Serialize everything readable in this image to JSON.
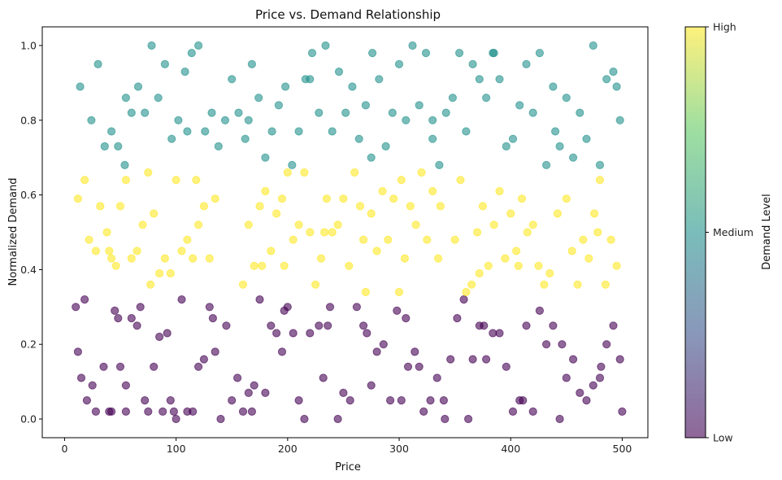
{
  "chart_data": {
    "type": "scatter",
    "title": "Price vs. Demand Relationship",
    "xlabel": "Price",
    "ylabel": "Normalized Demand",
    "xlim": [
      -20,
      523
    ],
    "ylim": [
      -0.05,
      1.05
    ],
    "xticks": [
      0,
      100,
      200,
      300,
      400,
      500
    ],
    "yticks": [
      0.0,
      0.2,
      0.4,
      0.6,
      0.8,
      1.0
    ],
    "xtick_labels": [
      "0",
      "100",
      "200",
      "300",
      "400",
      "500"
    ],
    "ytick_labels": [
      "0.0",
      "0.2",
      "0.4",
      "0.6",
      "0.8",
      "1.0"
    ],
    "grid": false,
    "marker_alpha": 0.6,
    "colorbar": {
      "label": "Demand Level",
      "ticks": [
        "Low",
        "Medium",
        "High"
      ],
      "colors": [
        "#440154",
        "#3b528b",
        "#21918c",
        "#5ec962",
        "#fde725"
      ]
    },
    "series": [
      {
        "level": "Low",
        "color": "#440154",
        "x": [
          10,
          12,
          18,
          20,
          25,
          28,
          35,
          40,
          42,
          45,
          48,
          50,
          55,
          60,
          65,
          68,
          75,
          80,
          85,
          88,
          92,
          95,
          100,
          105,
          110,
          115,
          120,
          125,
          130,
          135,
          140,
          145,
          150,
          155,
          160,
          165,
          170,
          175,
          180,
          185,
          190,
          195,
          200,
          205,
          210,
          215,
          220,
          228,
          232,
          238,
          245,
          250,
          256,
          262,
          268,
          275,
          280,
          286,
          292,
          298,
          302,
          308,
          314,
          318,
          322,
          328,
          334,
          340,
          346,
          352,
          358,
          362,
          366,
          372,
          378,
          384,
          390,
          396,
          402,
          408,
          414,
          420,
          426,
          432,
          438,
          444,
          450,
          456,
          462,
          468,
          474,
          480,
          486,
          492,
          498,
          500,
          15,
          55,
          72,
          98,
          133,
          168,
          197,
          236,
          271,
          306,
          341,
          376,
          411,
          446,
          481
        ],
        "y": [
          0.3,
          0.18,
          0.32,
          0.05,
          0.09,
          0.02,
          0.14,
          0.02,
          0.02,
          0.29,
          0.27,
          0.14,
          0.09,
          0.27,
          0.25,
          0.3,
          0.02,
          0.14,
          0.22,
          0.02,
          0.23,
          0.05,
          0.0,
          0.32,
          0.02,
          0.02,
          0.14,
          0.16,
          0.3,
          0.18,
          0.0,
          0.25,
          0.05,
          0.11,
          0.02,
          0.07,
          0.09,
          0.32,
          0.07,
          0.25,
          0.23,
          0.18,
          0.3,
          0.23,
          0.05,
          0.0,
          0.23,
          0.25,
          0.11,
          0.3,
          0.0,
          0.07,
          0.05,
          0.3,
          0.25,
          0.09,
          0.18,
          0.2,
          0.05,
          0.29,
          0.05,
          0.14,
          0.18,
          0.14,
          0.02,
          0.05,
          0.11,
          0.05,
          0.16,
          0.27,
          0.32,
          0.0,
          0.16,
          0.25,
          0.16,
          0.23,
          0.23,
          0.14,
          0.02,
          0.05,
          0.25,
          0.02,
          0.29,
          0.2,
          0.25,
          0.0,
          0.11,
          0.16,
          0.07,
          0.05,
          0.09,
          0.11,
          0.2,
          0.25,
          0.16,
          0.02,
          0.11,
          0.02,
          0.05,
          0.02,
          0.27,
          0.02,
          0.29,
          0.25,
          0.23,
          0.27,
          0.0,
          0.25,
          0.05,
          0.2,
          0.14
        ]
      },
      {
        "level": "Medium",
        "color": "#fde725",
        "x": [
          12,
          18,
          22,
          28,
          32,
          38,
          42,
          46,
          50,
          55,
          60,
          65,
          70,
          75,
          80,
          85,
          90,
          95,
          100,
          105,
          110,
          115,
          120,
          125,
          130,
          135,
          160,
          165,
          170,
          175,
          180,
          185,
          190,
          195,
          200,
          205,
          210,
          215,
          220,
          225,
          230,
          235,
          240,
          245,
          250,
          255,
          260,
          265,
          270,
          275,
          280,
          285,
          290,
          295,
          300,
          305,
          310,
          315,
          320,
          325,
          330,
          335,
          350,
          355,
          360,
          365,
          370,
          375,
          380,
          385,
          390,
          395,
          400,
          405,
          410,
          415,
          420,
          425,
          430,
          435,
          450,
          455,
          460,
          465,
          470,
          475,
          480,
          485,
          490,
          495,
          40,
          77,
          118,
          177,
          197,
          233,
          268,
          302,
          337,
          372,
          407,
          442,
          478
        ],
        "y": [
          0.59,
          0.64,
          0.48,
          0.45,
          0.57,
          0.5,
          0.43,
          0.41,
          0.57,
          0.64,
          0.43,
          0.45,
          0.52,
          0.66,
          0.55,
          0.39,
          0.43,
          0.39,
          0.64,
          0.45,
          0.48,
          0.43,
          0.52,
          0.57,
          0.43,
          0.59,
          0.36,
          0.52,
          0.41,
          0.57,
          0.61,
          0.45,
          0.55,
          0.59,
          0.66,
          0.48,
          0.52,
          0.66,
          0.5,
          0.36,
          0.43,
          0.59,
          0.5,
          0.52,
          0.59,
          0.41,
          0.66,
          0.57,
          0.34,
          0.55,
          0.45,
          0.61,
          0.48,
          0.59,
          0.34,
          0.43,
          0.57,
          0.52,
          0.66,
          0.48,
          0.61,
          0.43,
          0.48,
          0.64,
          0.34,
          0.36,
          0.5,
          0.57,
          0.41,
          0.52,
          0.61,
          0.43,
          0.55,
          0.45,
          0.59,
          0.5,
          0.52,
          0.41,
          0.36,
          0.39,
          0.59,
          0.45,
          0.36,
          0.48,
          0.43,
          0.55,
          0.64,
          0.36,
          0.48,
          0.41,
          0.45,
          0.36,
          0.64,
          0.41,
          0.41,
          0.5,
          0.48,
          0.64,
          0.57,
          0.39,
          0.41,
          0.55,
          0.5
        ]
      },
      {
        "level": "High",
        "color": "#21918c",
        "x": [
          14,
          24,
          30,
          36,
          42,
          48,
          54,
          60,
          66,
          72,
          78,
          84,
          90,
          96,
          102,
          108,
          114,
          120,
          126,
          132,
          138,
          144,
          150,
          156,
          162,
          168,
          174,
          180,
          186,
          192,
          198,
          204,
          210,
          216,
          222,
          228,
          234,
          240,
          246,
          252,
          258,
          264,
          270,
          276,
          282,
          288,
          294,
          300,
          306,
          312,
          318,
          324,
          330,
          336,
          342,
          348,
          354,
          360,
          366,
          372,
          378,
          384,
          390,
          396,
          402,
          408,
          414,
          420,
          426,
          432,
          438,
          444,
          450,
          456,
          462,
          468,
          474,
          480,
          486,
          492,
          498,
          55,
          110,
          165,
          220,
          275,
          330,
          385,
          440,
          495
        ],
        "y": [
          0.89,
          0.8,
          0.95,
          0.73,
          0.77,
          0.73,
          0.68,
          0.82,
          0.89,
          0.82,
          1.0,
          0.86,
          0.95,
          0.75,
          0.8,
          0.93,
          0.98,
          1.0,
          0.77,
          0.82,
          0.73,
          0.8,
          0.91,
          0.82,
          0.75,
          0.95,
          0.86,
          0.7,
          0.77,
          0.84,
          0.89,
          0.68,
          0.77,
          0.91,
          0.98,
          0.82,
          1.0,
          0.77,
          0.93,
          0.82,
          0.89,
          0.75,
          0.84,
          0.98,
          0.91,
          0.73,
          0.82,
          0.95,
          0.8,
          1.0,
          0.84,
          0.98,
          0.75,
          0.68,
          0.82,
          0.86,
          0.98,
          0.77,
          0.95,
          0.91,
          0.86,
          0.98,
          0.91,
          0.73,
          0.75,
          0.84,
          0.95,
          0.82,
          0.98,
          0.68,
          0.89,
          0.73,
          0.86,
          0.7,
          0.82,
          0.75,
          1.0,
          0.68,
          0.91,
          0.93,
          0.8,
          0.86,
          0.77,
          0.8,
          0.91,
          0.7,
          0.8,
          0.98,
          0.77,
          0.89
        ]
      }
    ]
  }
}
